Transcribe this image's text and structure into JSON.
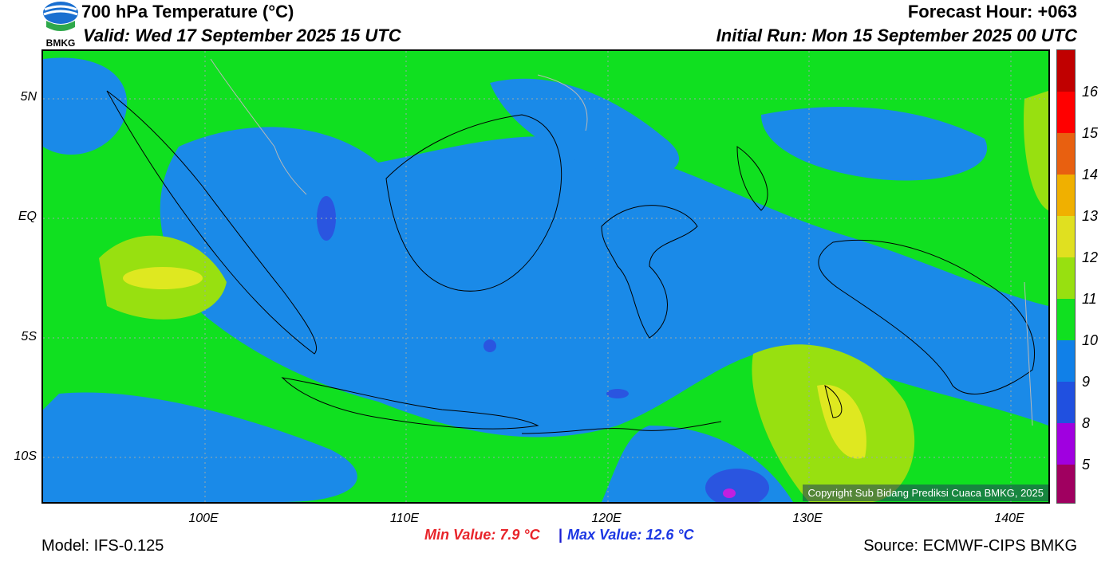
{
  "header": {
    "title": "700 hPa Temperature (°C)",
    "valid": "Valid: Wed 17 September 2025 15 UTC",
    "forecast_hour": "Forecast Hour: +063",
    "initial_run": "Initial Run: Mon 15 September 2025 00 UTC",
    "logo_text": "BMKG"
  },
  "map": {
    "lat_labels": [
      "5N",
      "EQ",
      "5S",
      "10S"
    ],
    "lon_labels": [
      "100E",
      "110E",
      "120E",
      "130E",
      "140E"
    ],
    "copyright": "Copyright Sub Bidang Prediksi Cuaca BMKG, 2025"
  },
  "colorbar": {
    "labels": [
      "16",
      "15",
      "14",
      "13",
      "12",
      "11",
      "10",
      "9",
      "8",
      "5"
    ],
    "colors": [
      "#c00000",
      "#ff0000",
      "#e86010",
      "#f0b000",
      "#e0e020",
      "#98e010",
      "#10e020",
      "#1080e8",
      "#2050e0",
      "#a000e0",
      "#a00060"
    ]
  },
  "stats": {
    "min": "Min Value: 7.9 °C",
    "separator": "|",
    "max": "Max Value: 12.6 °C"
  },
  "footer": {
    "model": "Model: IFS-0.125",
    "source": "Source: ECMWF-CIPS BMKG"
  },
  "fields": {
    "green": "#10e020",
    "blue": "#1a8ae8",
    "darkblue": "#2a55e0",
    "lime": "#98e010",
    "yellow": "#dfe820",
    "purple": "#c020e0"
  }
}
